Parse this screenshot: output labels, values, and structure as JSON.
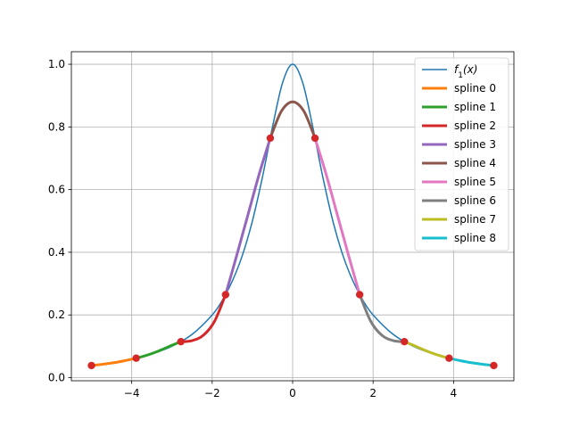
{
  "chart_data": {
    "type": "line",
    "title": "",
    "xlabel": "",
    "ylabel": "",
    "xlim": [
      -5.5,
      5.5
    ],
    "ylim": [
      -0.01,
      1.04
    ],
    "grid": true,
    "legend_position": "upper-right",
    "x_ticks": [
      -4,
      -2,
      0,
      2,
      4
    ],
    "x_tick_labels": [
      "−4",
      "−2",
      "0",
      "2",
      "4"
    ],
    "y_ticks": [
      0.0,
      0.2,
      0.4,
      0.6,
      0.8,
      1.0
    ],
    "y_tick_labels": [
      "0.0",
      "0.2",
      "0.4",
      "0.6",
      "0.8",
      "1.0"
    ],
    "function": {
      "name": "f1(x)",
      "name_main": "f",
      "name_sub": "1",
      "name_suffix": "(x)",
      "color": "#1f77b4",
      "x": [
        -5,
        -4.5,
        -4,
        -3.5,
        -3,
        -2.5,
        -2,
        -1.75,
        -1.5,
        -1.25,
        -1,
        -0.75,
        -0.5,
        -0.25,
        0,
        0.25,
        0.5,
        0.75,
        1,
        1.25,
        1.5,
        1.75,
        2,
        2.5,
        3,
        3.5,
        4,
        4.5,
        5
      ],
      "y": [
        0.0385,
        0.047,
        0.0588,
        0.0755,
        0.1,
        0.138,
        0.2,
        0.246,
        0.308,
        0.39,
        0.5,
        0.64,
        0.8,
        0.941,
        1.0,
        0.941,
        0.8,
        0.64,
        0.5,
        0.39,
        0.308,
        0.246,
        0.2,
        0.138,
        0.1,
        0.0755,
        0.0588,
        0.047,
        0.0385
      ]
    },
    "knots": {
      "color": "#d62728",
      "x": [
        -5.0,
        -3.889,
        -2.778,
        -1.667,
        -0.556,
        0.556,
        1.667,
        2.778,
        3.889,
        5.0
      ],
      "y": [
        0.0385,
        0.062,
        0.1147,
        0.2647,
        0.7642,
        0.7642,
        0.2647,
        0.1147,
        0.062,
        0.0385
      ]
    },
    "series": [
      {
        "name": "spline 0",
        "color": "#ff7f0e",
        "x": [
          -5.0,
          -4.72,
          -4.44,
          -4.17,
          -3.889
        ],
        "y": [
          0.0385,
          0.0425,
          0.0475,
          0.054,
          0.062
        ]
      },
      {
        "name": "spline 1",
        "color": "#2ca02c",
        "x": [
          -3.889,
          -3.61,
          -3.33,
          -3.06,
          -2.778
        ],
        "y": [
          0.062,
          0.072,
          0.085,
          0.1,
          0.1147
        ]
      },
      {
        "name": "spline 2",
        "color": "#d62728",
        "x": [
          -2.778,
          -2.5,
          -2.22,
          -1.94,
          -1.667
        ],
        "y": [
          0.1147,
          0.118,
          0.135,
          0.18,
          0.2647
        ]
      },
      {
        "name": "spline 3",
        "color": "#9467bd",
        "x": [
          -1.667,
          -1.39,
          -1.11,
          -0.83,
          -0.556
        ],
        "y": [
          0.2647,
          0.39,
          0.52,
          0.65,
          0.7642
        ]
      },
      {
        "name": "spline 4",
        "color": "#8c564b",
        "x": [
          -0.556,
          -0.28,
          0.0,
          0.28,
          0.556
        ],
        "y": [
          0.7642,
          0.85,
          0.88,
          0.85,
          0.7642
        ]
      },
      {
        "name": "spline 5",
        "color": "#e377c2",
        "x": [
          0.556,
          0.83,
          1.11,
          1.39,
          1.667
        ],
        "y": [
          0.7642,
          0.65,
          0.52,
          0.39,
          0.2647
        ]
      },
      {
        "name": "spline 6",
        "color": "#7f7f7f",
        "x": [
          1.667,
          1.94,
          2.22,
          2.5,
          2.778
        ],
        "y": [
          0.2647,
          0.18,
          0.135,
          0.118,
          0.1147
        ]
      },
      {
        "name": "spline 7",
        "color": "#bcbd22",
        "x": [
          2.778,
          3.06,
          3.33,
          3.61,
          3.889
        ],
        "y": [
          0.1147,
          0.1,
          0.085,
          0.072,
          0.062
        ]
      },
      {
        "name": "spline 8",
        "color": "#17becf",
        "x": [
          3.889,
          4.17,
          4.44,
          4.72,
          5.0
        ],
        "y": [
          0.062,
          0.054,
          0.0475,
          0.0425,
          0.0385
        ]
      }
    ]
  }
}
